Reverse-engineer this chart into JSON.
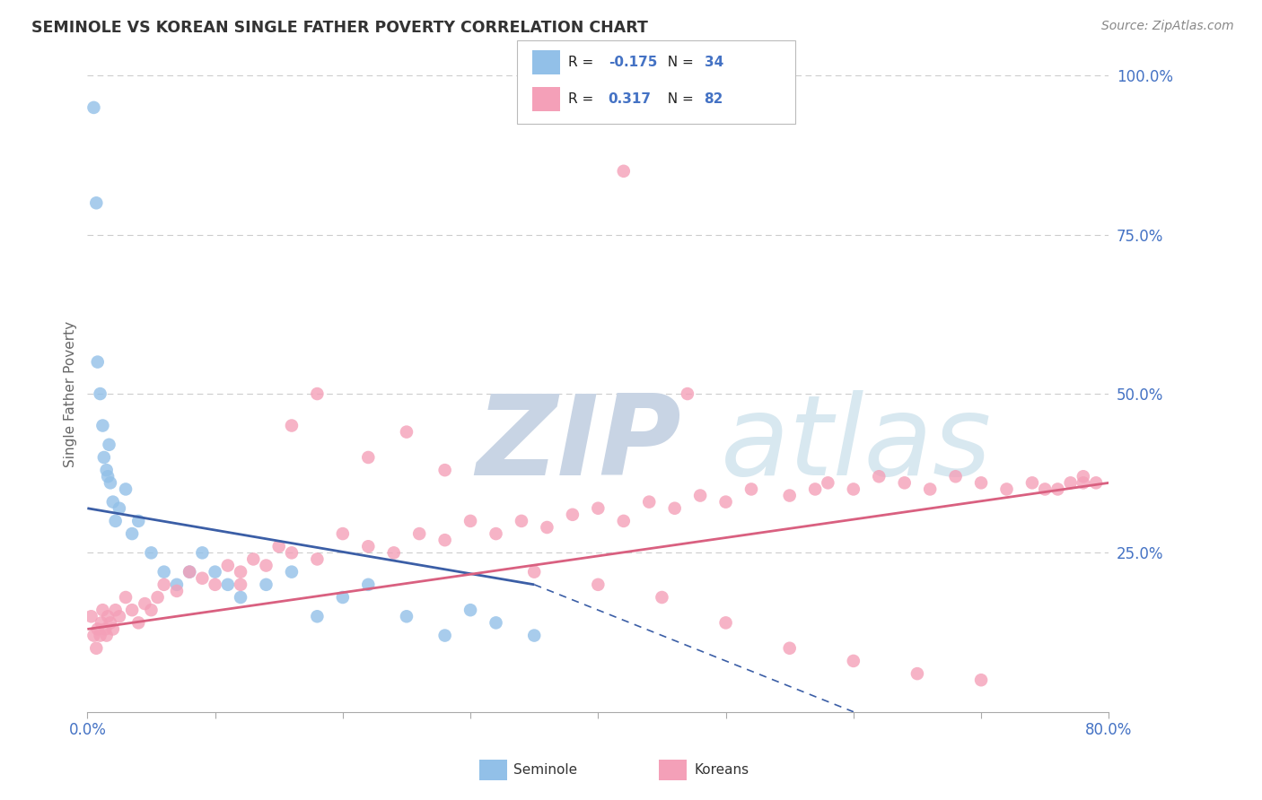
{
  "title": "SEMINOLE VS KOREAN SINGLE FATHER POVERTY CORRELATION CHART",
  "source": "Source: ZipAtlas.com",
  "ylabel": "Single Father Poverty",
  "xlim": [
    0.0,
    80.0
  ],
  "ylim": [
    0.0,
    100.0
  ],
  "seminole_R": "-0.175",
  "seminole_N": "34",
  "korean_R": "0.317",
  "korean_N": "82",
  "seminole_color": "#92C0E8",
  "korean_color": "#F4A0B8",
  "seminole_line_color": "#3B5EA6",
  "korean_line_color": "#D96080",
  "blue_label_color": "#4472C4",
  "watermark_color": "#D8E4F0",
  "background_color": "#FFFFFF",
  "seminole_x": [
    0.5,
    0.7,
    0.8,
    1.0,
    1.2,
    1.3,
    1.5,
    1.6,
    1.7,
    1.8,
    2.0,
    2.2,
    2.5,
    3.0,
    3.5,
    4.0,
    5.0,
    6.0,
    7.0,
    8.0,
    9.0,
    10.0,
    11.0,
    12.0,
    14.0,
    16.0,
    18.0,
    20.0,
    22.0,
    25.0,
    28.0,
    30.0,
    32.0,
    35.0
  ],
  "seminole_y": [
    95.0,
    80.0,
    55.0,
    50.0,
    45.0,
    40.0,
    38.0,
    37.0,
    42.0,
    36.0,
    33.0,
    30.0,
    32.0,
    35.0,
    28.0,
    30.0,
    25.0,
    22.0,
    20.0,
    22.0,
    25.0,
    22.0,
    20.0,
    18.0,
    20.0,
    22.0,
    15.0,
    18.0,
    20.0,
    15.0,
    12.0,
    16.0,
    14.0,
    12.0
  ],
  "korean_x": [
    0.3,
    0.5,
    0.7,
    0.8,
    1.0,
    1.1,
    1.2,
    1.4,
    1.5,
    1.6,
    1.8,
    2.0,
    2.2,
    2.5,
    3.0,
    3.5,
    4.0,
    4.5,
    5.0,
    5.5,
    6.0,
    7.0,
    8.0,
    9.0,
    10.0,
    11.0,
    12.0,
    13.0,
    14.0,
    15.0,
    16.0,
    18.0,
    20.0,
    22.0,
    24.0,
    26.0,
    28.0,
    30.0,
    32.0,
    34.0,
    36.0,
    38.0,
    40.0,
    42.0,
    44.0,
    46.0,
    48.0,
    50.0,
    52.0,
    55.0,
    57.0,
    58.0,
    60.0,
    62.0,
    64.0,
    66.0,
    68.0,
    70.0,
    72.0,
    74.0,
    76.0,
    77.0,
    78.0,
    79.0,
    12.0,
    16.0,
    18.0,
    22.0,
    25.0,
    28.0,
    35.0,
    40.0,
    45.0,
    50.0,
    55.0,
    60.0,
    65.0,
    70.0,
    75.0,
    78.0,
    42.0,
    47.0
  ],
  "korean_y": [
    15.0,
    12.0,
    10.0,
    13.0,
    12.0,
    14.0,
    16.0,
    13.0,
    12.0,
    15.0,
    14.0,
    13.0,
    16.0,
    15.0,
    18.0,
    16.0,
    14.0,
    17.0,
    16.0,
    18.0,
    20.0,
    19.0,
    22.0,
    21.0,
    20.0,
    23.0,
    22.0,
    24.0,
    23.0,
    26.0,
    25.0,
    24.0,
    28.0,
    26.0,
    25.0,
    28.0,
    27.0,
    30.0,
    28.0,
    30.0,
    29.0,
    31.0,
    32.0,
    30.0,
    33.0,
    32.0,
    34.0,
    33.0,
    35.0,
    34.0,
    35.0,
    36.0,
    35.0,
    37.0,
    36.0,
    35.0,
    37.0,
    36.0,
    35.0,
    36.0,
    35.0,
    36.0,
    37.0,
    36.0,
    20.0,
    45.0,
    50.0,
    40.0,
    44.0,
    38.0,
    22.0,
    20.0,
    18.0,
    14.0,
    10.0,
    8.0,
    6.0,
    5.0,
    35.0,
    36.0,
    85.0,
    50.0
  ]
}
